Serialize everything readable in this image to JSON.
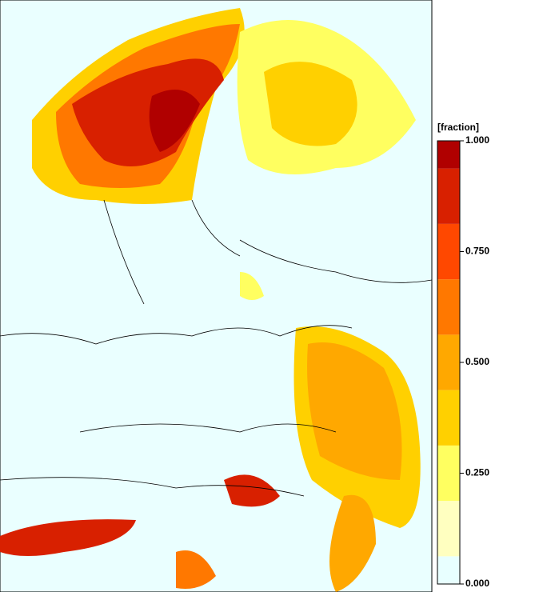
{
  "colorbar": {
    "unit": "[fraction]",
    "levels": [
      0,
      0.0625,
      0.1875,
      0.3125,
      0.4375,
      0.5625,
      0.6875,
      0.8125,
      0.9375,
      1
    ],
    "colors": [
      "#e8ffff",
      "#ffffc0",
      "#ffff60",
      "#ffd000",
      "#ffa800",
      "#ff7800",
      "#ff4800",
      "#d82000",
      "#b00000"
    ],
    "lim": [
      0,
      1
    ],
    "ticks": [
      {
        "value": 1,
        "label": "1.000"
      },
      {
        "value": 0.75,
        "label": "0.750"
      },
      {
        "value": 0.5,
        "label": "0.500"
      },
      {
        "value": 0.25,
        "label": "0.250"
      },
      {
        "value": 0,
        "label": "0.000"
      }
    ]
  }
}
